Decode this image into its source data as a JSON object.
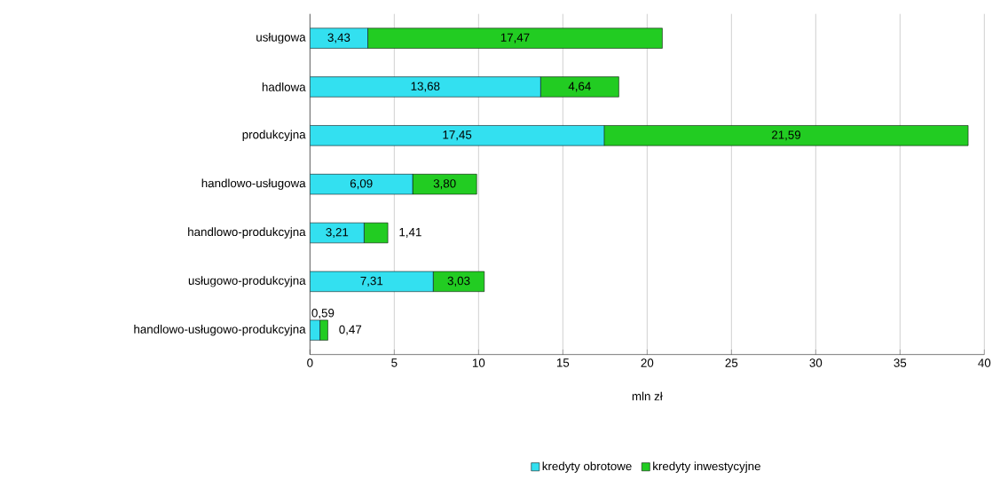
{
  "chart_data": {
    "type": "bar",
    "orientation": "horizontal",
    "stacked": true,
    "categories": [
      "usługowa",
      "hadlowa",
      "produkcyjna",
      "handlowo-usługowa",
      "handlowo-produkcyjna",
      "usługowo-produkcyjna",
      "handlowo-usługowo-produkcyjna"
    ],
    "series": [
      {
        "name": "kredyty obrotowe",
        "color": "#33e0f0",
        "values": [
          3.43,
          13.68,
          17.45,
          6.09,
          3.21,
          7.31,
          0.59
        ],
        "value_labels": [
          "3,43",
          "13,68",
          "17,45",
          "6,09",
          "3,21",
          "7,31",
          "0,59"
        ]
      },
      {
        "name": "kredyty inwestycyjne",
        "color": "#22cc22",
        "values": [
          17.47,
          4.64,
          21.59,
          3.8,
          1.41,
          3.03,
          0.47
        ],
        "value_labels": [
          "17,47",
          "4,64",
          "21,59",
          "3,80",
          "1,41",
          "3,03",
          "0,47"
        ]
      }
    ],
    "xlim": [
      0,
      40
    ],
    "xticks": [
      0,
      5,
      10,
      15,
      20,
      25,
      30,
      35,
      40
    ],
    "grid": "x",
    "xlabel": "mln zł",
    "legend": "bottom"
  }
}
